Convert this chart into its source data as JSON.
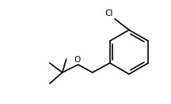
{
  "background": "#ffffff",
  "line_color": "#000000",
  "line_width": 1.2,
  "font_size_label": 7.5,
  "cl_label": "Cl",
  "o_label": "O",
  "figsize": [
    2.16,
    1.32
  ],
  "dpi": 100
}
